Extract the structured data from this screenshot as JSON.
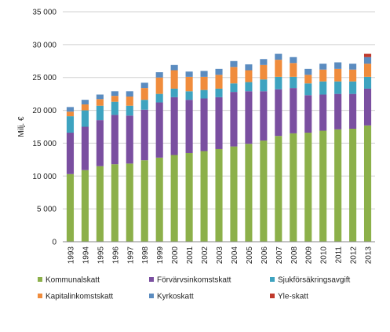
{
  "chart_data": {
    "type": "bar",
    "stacked": true,
    "title": "",
    "xlabel": "",
    "ylabel": "Milj. €",
    "ylim": [
      0,
      35000
    ],
    "yticks": [
      0,
      5000,
      10000,
      15000,
      20000,
      25000,
      30000,
      35000
    ],
    "ytick_labels": [
      "0",
      "5 000",
      "10 000",
      "15 000",
      "20 000",
      "25 000",
      "30 000",
      "35 000"
    ],
    "grid": "horizontal",
    "legend_position": "bottom",
    "categories": [
      "1993",
      "1994",
      "1995",
      "1996",
      "1997",
      "1998",
      "1999",
      "2000",
      "2001",
      "2002",
      "2003",
      "2004",
      "2005",
      "2006",
      "2007",
      "2008",
      "2009",
      "2010",
      "2011",
      "2012",
      "2013"
    ],
    "series": [
      {
        "name": "Kommunalskatt",
        "color": "#8cb04a",
        "values": [
          10300,
          10900,
          11500,
          11800,
          11900,
          12400,
          12800,
          13200,
          13500,
          13800,
          14100,
          14500,
          14900,
          15400,
          16100,
          16500,
          16600,
          16900,
          17100,
          17200,
          17700
        ]
      },
      {
        "name": "Förvärvsinkomstskatt",
        "color": "#7a4fa0",
        "values": [
          6300,
          6600,
          7000,
          7500,
          7300,
          7700,
          8400,
          8800,
          8100,
          8000,
          7900,
          8300,
          8000,
          7500,
          7100,
          6900,
          5700,
          5500,
          5400,
          5300,
          5600
        ]
      },
      {
        "name": "Sjukförsäkringsavgift",
        "color": "#3ea3c0",
        "values": [
          2500,
          2500,
          2200,
          2000,
          1500,
          1500,
          1300,
          1300,
          1300,
          1300,
          1300,
          1300,
          1400,
          1800,
          1900,
          1700,
          1800,
          2000,
          1900,
          1900,
          1800
        ]
      },
      {
        "name": "Kapitalinkomstskatt",
        "color": "#f08c3c",
        "values": [
          700,
          900,
          1000,
          900,
          1400,
          1800,
          2500,
          2800,
          2200,
          2000,
          2100,
          2500,
          1800,
          2200,
          2600,
          2100,
          1300,
          1800,
          1900,
          1800,
          2000
        ]
      },
      {
        "name": "Kyrkoskatt",
        "color": "#5b8cc0",
        "values": [
          700,
          700,
          700,
          700,
          800,
          800,
          800,
          800,
          800,
          900,
          900,
          900,
          900,
          900,
          900,
          900,
          900,
          900,
          1000,
          900,
          1000
        ]
      },
      {
        "name": "Yle-skatt",
        "color": "#c0392b",
        "values": [
          0,
          0,
          0,
          0,
          0,
          0,
          0,
          0,
          0,
          0,
          0,
          0,
          0,
          0,
          0,
          0,
          0,
          0,
          0,
          0,
          500
        ]
      }
    ]
  }
}
